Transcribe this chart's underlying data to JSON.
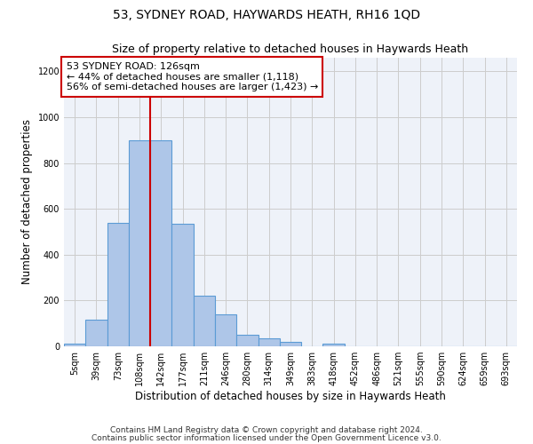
{
  "title": "53, SYDNEY ROAD, HAYWARDS HEATH, RH16 1QD",
  "subtitle": "Size of property relative to detached houses in Haywards Heath",
  "xlabel": "Distribution of detached houses by size in Haywards Heath",
  "ylabel": "Number of detached properties",
  "bin_labels": [
    "5sqm",
    "39sqm",
    "73sqm",
    "108sqm",
    "142sqm",
    "177sqm",
    "211sqm",
    "246sqm",
    "280sqm",
    "314sqm",
    "349sqm",
    "383sqm",
    "418sqm",
    "452sqm",
    "486sqm",
    "521sqm",
    "555sqm",
    "590sqm",
    "624sqm",
    "659sqm",
    "693sqm"
  ],
  "bar_values": [
    10,
    115,
    540,
    900,
    900,
    535,
    220,
    140,
    50,
    35,
    20,
    0,
    10,
    0,
    0,
    0,
    0,
    0,
    0,
    0,
    0
  ],
  "bar_color": "#aec6e8",
  "bar_edgecolor": "#5b9bd5",
  "bar_linewidth": 0.8,
  "vline_x": 3.5,
  "vline_color": "#cc0000",
  "annotation_line1": "53 SYDNEY ROAD: 126sqm",
  "annotation_line2": "← 44% of detached houses are smaller (1,118)",
  "annotation_line3": "56% of semi-detached houses are larger (1,423) →",
  "annotation_box_color": "#ffffff",
  "annotation_box_edgecolor": "#cc0000",
  "ylim": [
    0,
    1260
  ],
  "yticks": [
    0,
    200,
    400,
    600,
    800,
    1000,
    1200
  ],
  "grid_color": "#cccccc",
  "bg_color": "#eef2f9",
  "footer1": "Contains HM Land Registry data © Crown copyright and database right 2024.",
  "footer2": "Contains public sector information licensed under the Open Government Licence v3.0.",
  "title_fontsize": 10,
  "subtitle_fontsize": 9,
  "xlabel_fontsize": 8.5,
  "ylabel_fontsize": 8.5,
  "tick_fontsize": 7,
  "annotation_fontsize": 8,
  "footer_fontsize": 6.5
}
